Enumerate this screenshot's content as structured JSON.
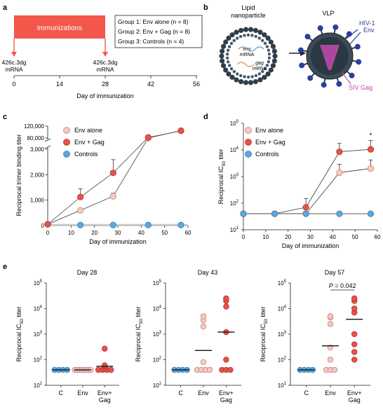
{
  "colors": {
    "env": "#f6c9c4",
    "envEdge": "#c9827a",
    "gag": "#e8514a",
    "gagEdge": "#b3342f",
    "ctrl": "#5ba8de",
    "ctrlEdge": "#3a7fb5",
    "immunization": "#f2574a",
    "axis": "#222222",
    "vlp": "#33434f",
    "env_label": "#2a3f9a",
    "gag_label": "#c047b0"
  },
  "panel_a": {
    "letter": "a",
    "bar_label": "Immunizations",
    "injection_label_1": "426c.3dg",
    "injection_label_1b": "mRNA",
    "injection_label_2": "426c.3dg",
    "injection_label_2b": "mRNA",
    "groups": [
      "Group 1: Env alone (n = 8)",
      "Group 2: Env + Gag (n = 8)",
      "Group 3: Controls (n = 4)"
    ],
    "xticks": [
      "0",
      "14",
      "28",
      "42",
      "56"
    ],
    "xlabel": "Day of immunization"
  },
  "panel_b": {
    "letter": "b",
    "lnp_label_1": "Lipid",
    "lnp_label_2": "nanoparticle",
    "env_mrna_1": "env",
    "env_mrna_2": "mRNA",
    "gag_mrna_1": "gag",
    "gag_mrna_2": "mRNA",
    "vlp_label": "VLP",
    "env_label_1": "HIV-1",
    "env_label_2": "Env",
    "gag_label": "SIV Gag"
  },
  "chart_data": [
    {
      "panel": "c",
      "type": "line",
      "ylabel": "Reciprocal trimer binding titer",
      "xlabel": "Day of immunization",
      "x": [
        0,
        14,
        28,
        43,
        57
      ],
      "xticks": [
        "0",
        "10",
        "20",
        "30",
        "40",
        "50",
        "60"
      ],
      "yticks_lower": [
        "0",
        "1,000",
        "2,000",
        "3,000"
      ],
      "yticks_upper": [
        "80,000",
        "120,000"
      ],
      "ylim_lower": [
        0,
        3000
      ],
      "ylim_upper": [
        80000,
        120000
      ],
      "axis_break": true,
      "legend": [
        "Env alone",
        "Env + Gag",
        "Controls"
      ],
      "series": [
        {
          "name": "Env alone",
          "values": [
            50,
            600,
            1150,
            80000,
            105000
          ],
          "errors": [
            0,
            0,
            120,
            0,
            0
          ]
        },
        {
          "name": "Env + Gag",
          "values": [
            50,
            1120,
            2070,
            82000,
            104000
          ],
          "errors": [
            0,
            320,
            520,
            5000,
            6000
          ]
        },
        {
          "name": "Controls",
          "values": [
            null,
            20,
            20,
            20,
            20
          ],
          "errors": [
            0,
            0,
            0,
            0,
            0
          ]
        }
      ]
    },
    {
      "panel": "d",
      "type": "line",
      "ylabel": "Reciprocal IC50 titer",
      "xlabel": "Day of immunization",
      "log_y": true,
      "x": [
        0,
        14,
        28,
        43,
        57
      ],
      "xticks": [
        "0",
        "10",
        "20",
        "30",
        "40",
        "50",
        "60"
      ],
      "yticks": [
        "10",
        "10",
        "10",
        "10",
        "10"
      ],
      "ytick_exp": [
        "1",
        "2",
        "3",
        "4",
        "5"
      ],
      "ylim": [
        10,
        100000
      ],
      "annotation": "*",
      "legend": [
        "Env alone",
        "Env + Gag",
        "Controls"
      ],
      "series": [
        {
          "name": "Env alone",
          "values": [
            40,
            40,
            40,
            1400,
            2000
          ],
          "errors_up": [
            0,
            0,
            0,
            1500,
            2200
          ]
        },
        {
          "name": "Env + Gag",
          "values": [
            40,
            40,
            70,
            8500,
            10500
          ],
          "errors_up": [
            0,
            0,
            80,
            9000,
            12000
          ]
        },
        {
          "name": "Controls",
          "values": [
            40,
            40,
            40,
            40,
            40
          ],
          "errors_up": [
            0,
            0,
            0,
            0,
            0
          ]
        }
      ]
    },
    {
      "panel": "e",
      "type": "scatter",
      "title": "Day 28",
      "log_y": true,
      "ylabel": "Reciprocal IC50 titer",
      "ylim": [
        10,
        100000
      ],
      "categories": [
        "C",
        "Env",
        "Env+",
        "Gag"
      ],
      "groups": [
        {
          "name": "C",
          "values": [
            40,
            40,
            40,
            40
          ],
          "mean": 40
        },
        {
          "name": "Env",
          "values": [
            40,
            40,
            40,
            40,
            40,
            40,
            40,
            40
          ],
          "mean": 40
        },
        {
          "name": "Env+Gag",
          "values": [
            40,
            40,
            40,
            40,
            45,
            55,
            60,
            270
          ],
          "mean": 55
        }
      ]
    },
    {
      "panel": "e",
      "type": "scatter",
      "title": "Day 43",
      "log_y": true,
      "ylabel": "Reciprocal IC50 titer",
      "ylim": [
        10,
        100000
      ],
      "categories": [
        "C",
        "Env",
        "Env+",
        "Gag"
      ],
      "groups": [
        {
          "name": "C",
          "values": [
            40,
            40,
            40,
            40
          ],
          "mean": 40
        },
        {
          "name": "Env",
          "values": [
            40,
            40,
            40,
            40,
            80,
            2000,
            3500,
            5000
          ],
          "mean": 230
        },
        {
          "name": "Env+Gag",
          "values": [
            40,
            40,
            40,
            100,
            1200,
            12000,
            20000,
            25000
          ],
          "mean": 1200
        }
      ]
    },
    {
      "panel": "e",
      "type": "scatter",
      "title": "Day 57",
      "log_y": true,
      "ylabel": "Reciprocal IC50 titer",
      "ylim": [
        10,
        100000
      ],
      "annotation": "P = 0.042",
      "categories": [
        "C",
        "Env",
        "Env+",
        "Gag"
      ],
      "groups": [
        {
          "name": "C",
          "values": [
            40,
            40,
            40,
            40
          ],
          "mean": 40
        },
        {
          "name": "Env",
          "values": [
            40,
            40,
            40,
            100,
            300,
            2500,
            4500,
            5000
          ],
          "mean": 350
        },
        {
          "name": "Env+Gag",
          "values": [
            100,
            200,
            400,
            1000,
            7000,
            10000,
            20000,
            25000
          ],
          "mean": 3800
        }
      ]
    }
  ],
  "panel_c": {
    "letter": "c"
  },
  "panel_d": {
    "letter": "d"
  },
  "panel_e": {
    "letter": "e"
  }
}
